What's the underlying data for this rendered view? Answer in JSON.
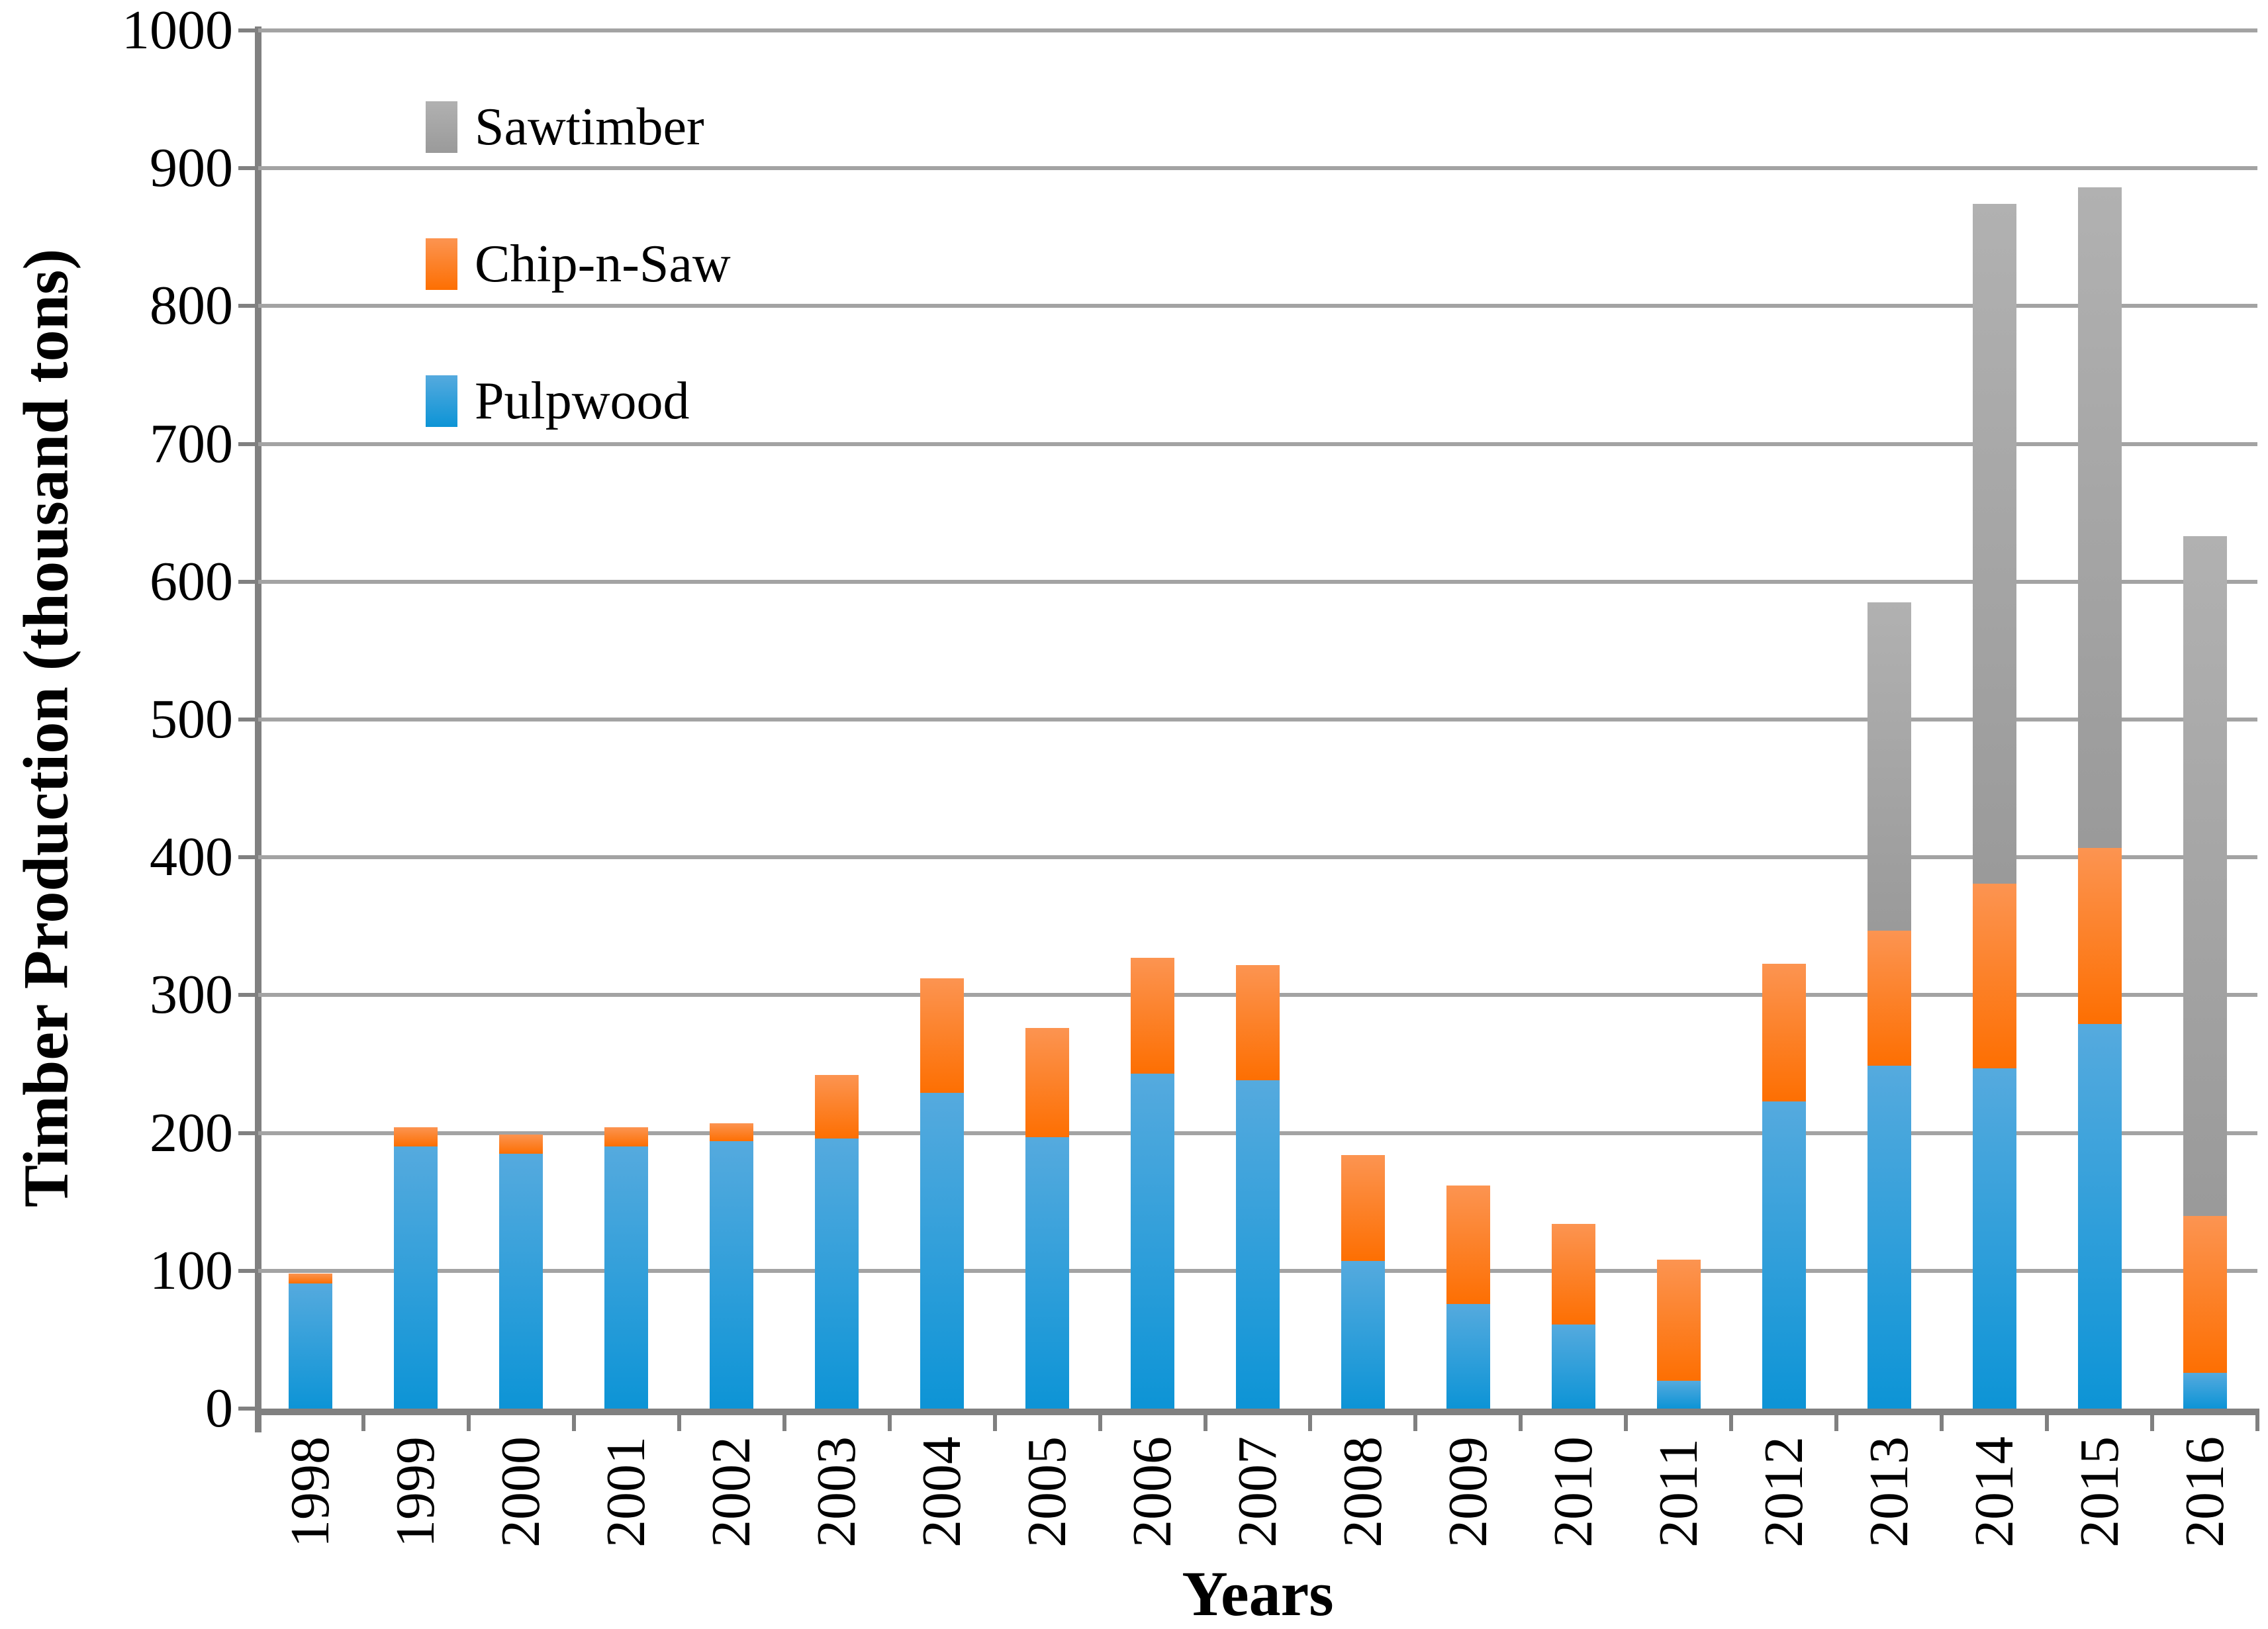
{
  "page": {
    "background": "#FFFFFF"
  },
  "chart_data": {
    "type": "bar",
    "stacked": true,
    "title": "",
    "xlabel": "Years",
    "ylabel": "Timber Production (thousand tons)",
    "ylim": [
      0,
      1000
    ],
    "ytick_interval": 100,
    "ytick_labels": [
      "0",
      "100",
      "200",
      "300",
      "400",
      "500",
      "600",
      "700",
      "800",
      "900",
      "1000"
    ],
    "grid": true,
    "legend_position": "upper-left-inside",
    "categories": [
      "1998",
      "1999",
      "2000",
      "2001",
      "2002",
      "2003",
      "2004",
      "2005",
      "2006",
      "2007",
      "2008",
      "2009",
      "2010",
      "2011",
      "2012",
      "2013",
      "2014",
      "2015",
      "2016"
    ],
    "series": [
      {
        "name": "Pulpwood",
        "color_top": "#55AADE",
        "color_bottom": "#0D94D6",
        "values": [
          91,
          190,
          185,
          190,
          194,
          196,
          229,
          197,
          243,
          238,
          107,
          76,
          61,
          20,
          223,
          249,
          247,
          279,
          26
        ]
      },
      {
        "name": "Chip-n-Saw",
        "color_top": "#FC9451",
        "color_bottom": "#FD6F02",
        "values": [
          7,
          14,
          14,
          14,
          13,
          46,
          83,
          79,
          84,
          84,
          77,
          86,
          73,
          88,
          100,
          98,
          134,
          128,
          114
        ]
      },
      {
        "name": "Sawtimber",
        "color_top": "#B1B1B1",
        "color_bottom": "#9A9A9A",
        "values": [
          0,
          0,
          0,
          0,
          0,
          0,
          0,
          0,
          0,
          0,
          0,
          0,
          0,
          0,
          0,
          238,
          493,
          479,
          493
        ]
      }
    ],
    "legend_order": [
      "Sawtimber",
      "Chip-n-Saw",
      "Pulpwood"
    ],
    "axis_color": "#808080",
    "grid_color": "#A3A3A3",
    "text_color": "#000000"
  }
}
